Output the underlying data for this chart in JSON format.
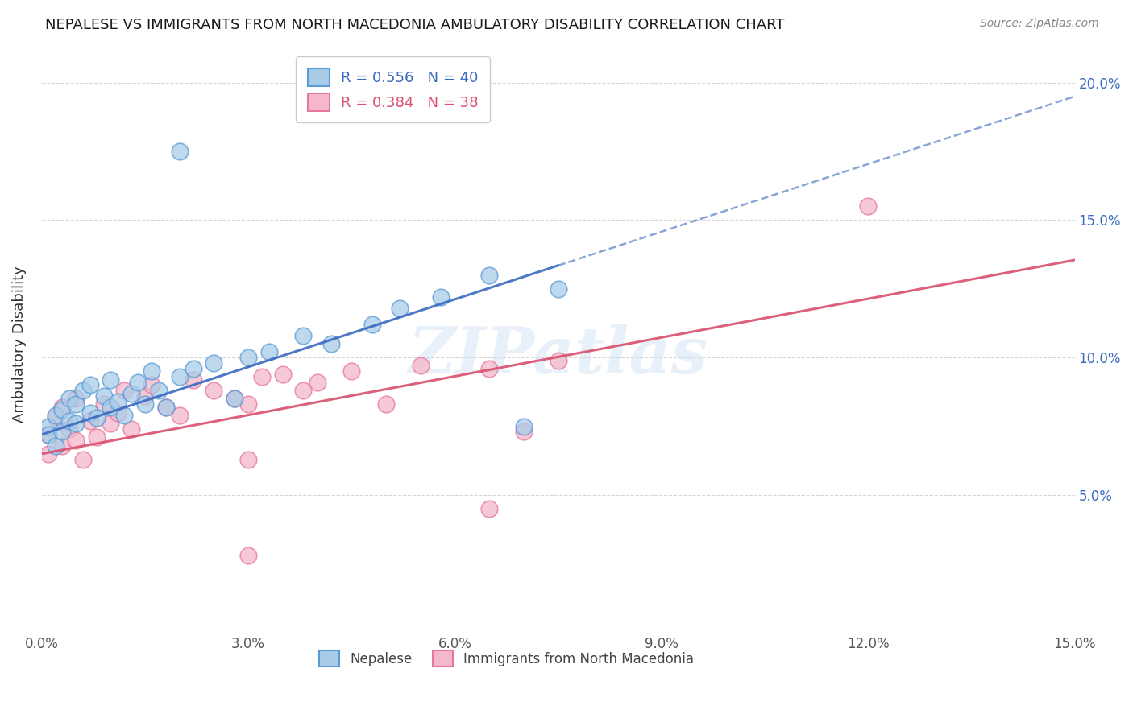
{
  "title": "NEPALESE VS IMMIGRANTS FROM NORTH MACEDONIA AMBULATORY DISABILITY CORRELATION CHART",
  "source": "Source: ZipAtlas.com",
  "ylabel": "Ambulatory Disability",
  "xlim": [
    0.0,
    0.15
  ],
  "ylim": [
    0.0,
    0.21
  ],
  "xtick_vals": [
    0.0,
    0.03,
    0.06,
    0.09,
    0.12,
    0.15
  ],
  "ytick_vals": [
    0.05,
    0.1,
    0.15,
    0.2
  ],
  "nepalese_R": 0.556,
  "nepalese_N": 40,
  "macedonia_R": 0.384,
  "macedonia_N": 38,
  "nepalese_dot_face": "#a8cce8",
  "nepalese_dot_edge": "#5b9bd5",
  "macedonia_dot_face": "#f4b8cc",
  "macedonia_dot_edge": "#e8789a",
  "trendline_blue": "#3a6abf",
  "trendline_pink": "#d94f6e",
  "watermark": "ZIPatlas",
  "legend_label_blue": "R = 0.556   N = 40",
  "legend_label_pink": "R = 0.384   N = 38",
  "bottom_label_blue": "Nepalese",
  "bottom_label_pink": "Immigrants from North Macedonia",
  "nepalese_x": [
    0.001,
    0.001,
    0.002,
    0.002,
    0.003,
    0.003,
    0.004,
    0.004,
    0.005,
    0.005,
    0.006,
    0.007,
    0.007,
    0.008,
    0.009,
    0.01,
    0.01,
    0.011,
    0.012,
    0.013,
    0.014,
    0.015,
    0.016,
    0.017,
    0.018,
    0.02,
    0.022,
    0.025,
    0.028,
    0.03,
    0.033,
    0.038,
    0.042,
    0.048,
    0.052,
    0.058,
    0.065,
    0.07,
    0.075,
    0.02
  ],
  "nepalese_y": [
    0.075,
    0.072,
    0.068,
    0.079,
    0.073,
    0.081,
    0.077,
    0.085,
    0.076,
    0.083,
    0.088,
    0.08,
    0.09,
    0.078,
    0.086,
    0.082,
    0.092,
    0.084,
    0.079,
    0.087,
    0.091,
    0.083,
    0.095,
    0.088,
    0.082,
    0.093,
    0.096,
    0.098,
    0.085,
    0.1,
    0.102,
    0.108,
    0.105,
    0.112,
    0.118,
    0.122,
    0.13,
    0.075,
    0.125,
    0.175
  ],
  "macedonia_x": [
    0.001,
    0.001,
    0.002,
    0.003,
    0.003,
    0.004,
    0.005,
    0.005,
    0.006,
    0.007,
    0.008,
    0.009,
    0.01,
    0.011,
    0.012,
    0.013,
    0.015,
    0.016,
    0.018,
    0.02,
    0.022,
    0.025,
    0.028,
    0.03,
    0.032,
    0.035,
    0.038,
    0.04,
    0.045,
    0.05,
    0.055,
    0.065,
    0.07,
    0.075,
    0.065,
    0.12,
    0.03,
    0.03
  ],
  "macedonia_y": [
    0.072,
    0.065,
    0.078,
    0.068,
    0.082,
    0.074,
    0.07,
    0.085,
    0.063,
    0.077,
    0.071,
    0.083,
    0.076,
    0.08,
    0.088,
    0.074,
    0.086,
    0.09,
    0.082,
    0.079,
    0.092,
    0.088,
    0.085,
    0.083,
    0.093,
    0.094,
    0.088,
    0.091,
    0.095,
    0.083,
    0.097,
    0.096,
    0.073,
    0.099,
    0.045,
    0.155,
    0.028,
    0.063
  ],
  "trendline_blue_intercept": 0.072,
  "trendline_blue_slope": 0.82,
  "trendline_pink_intercept": 0.065,
  "trendline_pink_slope": 0.47
}
